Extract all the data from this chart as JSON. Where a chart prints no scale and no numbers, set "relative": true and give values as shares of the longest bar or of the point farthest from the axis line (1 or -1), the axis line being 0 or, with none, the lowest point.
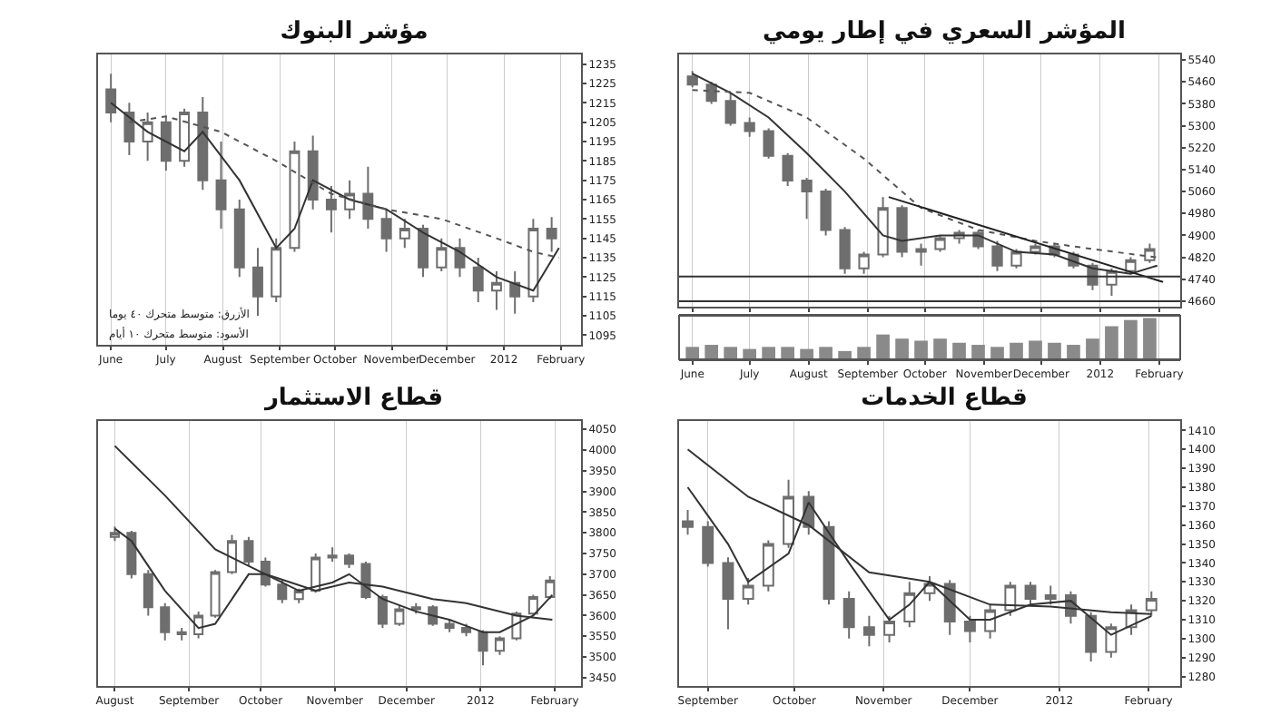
{
  "chart_data": [
    {
      "type": "candlestick",
      "title": "مؤشر البنوك",
      "color": "#6e6e6e",
      "grid": "x",
      "x": [
        "2011-06-01",
        "2011-06-11",
        "2011-06-21",
        "2011-07-01",
        "2011-07-11",
        "2011-07-21",
        "2011-07-31",
        "2011-08-10",
        "2011-08-20",
        "2011-08-30",
        "2011-09-09",
        "2011-09-19",
        "2011-09-29",
        "2011-10-09",
        "2011-10-19",
        "2011-10-29",
        "2011-11-08",
        "2011-11-18",
        "2011-11-28",
        "2011-12-08",
        "2011-12-18",
        "2011-12-28",
        "2012-01-07",
        "2012-01-17",
        "2012-01-27"
      ],
      "ohlc": [
        [
          1222,
          1230,
          1205,
          1210
        ],
        [
          1210,
          1215,
          1188,
          1195
        ],
        [
          1195,
          1210,
          1185,
          1205
        ],
        [
          1205,
          1208,
          1180,
          1185
        ],
        [
          1185,
          1212,
          1182,
          1210
        ],
        [
          1210,
          1218,
          1170,
          1175
        ],
        [
          1175,
          1195,
          1150,
          1160
        ],
        [
          1160,
          1165,
          1125,
          1130
        ],
        [
          1130,
          1140,
          1105,
          1115
        ],
        [
          1115,
          1145,
          1112,
          1140
        ],
        [
          1140,
          1195,
          1138,
          1190
        ],
        [
          1190,
          1198,
          1160,
          1165
        ],
        [
          1165,
          1172,
          1148,
          1160
        ],
        [
          1160,
          1175,
          1155,
          1168
        ],
        [
          1168,
          1182,
          1150,
          1155
        ],
        [
          1155,
          1160,
          1138,
          1145
        ],
        [
          1145,
          1155,
          1140,
          1150
        ],
        [
          1150,
          1152,
          1125,
          1130
        ],
        [
          1130,
          1145,
          1128,
          1140
        ],
        [
          1140,
          1145,
          1125,
          1130
        ],
        [
          1130,
          1135,
          1112,
          1118
        ],
        [
          1118,
          1128,
          1108,
          1122
        ],
        [
          1122,
          1128,
          1106,
          1115
        ],
        [
          1115,
          1155,
          1112,
          1150
        ],
        [
          1150,
          1156,
          1138,
          1145
        ]
      ],
      "series": [
        {
          "type": "line",
          "color": "#333333",
          "line_style": "solid",
          "x": [
            "2011-06-01",
            "2011-06-21",
            "2011-07-11",
            "2011-07-21",
            "2011-08-10",
            "2011-08-30",
            "2011-09-09",
            "2011-09-19",
            "2011-10-09",
            "2011-10-29",
            "2011-11-18",
            "2011-12-08",
            "2011-12-28",
            "2012-01-17",
            "2012-01-31"
          ],
          "values": [
            1215,
            1200,
            1190,
            1200,
            1175,
            1140,
            1150,
            1175,
            1165,
            1160,
            1148,
            1138,
            1125,
            1118,
            1140
          ]
        },
        {
          "type": "line",
          "color": "#555555",
          "line_style": "dotted",
          "x": [
            "2011-06-11",
            "2011-07-01",
            "2011-07-31",
            "2011-08-30",
            "2011-09-29",
            "2011-10-29",
            "2011-11-28",
            "2011-12-28",
            "2012-01-17",
            "2012-01-31"
          ],
          "values": [
            1205,
            1208,
            1200,
            1185,
            1168,
            1160,
            1155,
            1145,
            1138,
            1135
          ]
        }
      ],
      "annotations": [
        "الأزرق: متوسط متحرك ٤٠ يوما",
        "الأسود: متوسط متحرك ١٠ أيام"
      ],
      "xlim": [
        "2011-05-25",
        "2012-02-12"
      ],
      "xticks": [
        {
          "value": "2011-06-01",
          "label": "June"
        },
        {
          "value": "2011-07-01",
          "label": "July"
        },
        {
          "value": "2011-08-01",
          "label": "August"
        },
        {
          "value": "2011-09-01",
          "label": "September"
        },
        {
          "value": "2011-10-01",
          "label": "October"
        },
        {
          "value": "2011-11-01",
          "label": "November"
        },
        {
          "value": "2011-12-01",
          "label": "December"
        },
        {
          "value": "2012-01-01",
          "label": "2012"
        },
        {
          "value": "2012-02-01",
          "label": "February"
        }
      ],
      "ylim": [
        1090,
        1240
      ],
      "yticks": [
        1095,
        1105,
        1115,
        1125,
        1135,
        1145,
        1155,
        1165,
        1175,
        1185,
        1195,
        1205,
        1215,
        1225,
        1235
      ]
    },
    {
      "type": "candlestick",
      "title": "المؤشر السعري في إطار يومي",
      "color": "#6e6e6e",
      "grid": "x",
      "tick_labels": "y",
      "x": [
        "2011-06-01",
        "2011-06-11",
        "2011-06-21",
        "2011-07-01",
        "2011-07-11",
        "2011-07-21",
        "2011-07-31",
        "2011-08-10",
        "2011-08-20",
        "2011-08-30",
        "2011-09-09",
        "2011-09-19",
        "2011-09-29",
        "2011-10-09",
        "2011-10-19",
        "2011-10-29",
        "2011-11-08",
        "2011-11-18",
        "2011-11-28",
        "2011-12-08",
        "2011-12-18",
        "2011-12-28",
        "2012-01-07",
        "2012-01-17",
        "2012-01-27"
      ],
      "ohlc": [
        [
          5480,
          5500,
          5440,
          5450
        ],
        [
          5450,
          5460,
          5380,
          5390
        ],
        [
          5390,
          5420,
          5300,
          5310
        ],
        [
          5310,
          5330,
          5260,
          5280
        ],
        [
          5280,
          5290,
          5180,
          5190
        ],
        [
          5190,
          5200,
          5080,
          5100
        ],
        [
          5100,
          5110,
          4960,
          5060
        ],
        [
          5060,
          5070,
          4900,
          4920
        ],
        [
          4920,
          4930,
          4760,
          4780
        ],
        [
          4780,
          4840,
          4760,
          4830
        ],
        [
          4830,
          5040,
          4820,
          5000
        ],
        [
          5000,
          5010,
          4820,
          4840
        ],
        [
          4840,
          4870,
          4790,
          4850
        ],
        [
          4850,
          4900,
          4840,
          4890
        ],
        [
          4890,
          4920,
          4870,
          4910
        ],
        [
          4910,
          4920,
          4850,
          4860
        ],
        [
          4860,
          4880,
          4770,
          4790
        ],
        [
          4790,
          4850,
          4780,
          4840
        ],
        [
          4840,
          4870,
          4830,
          4860
        ],
        [
          4860,
          4870,
          4820,
          4830
        ],
        [
          4830,
          4840,
          4780,
          4790
        ],
        [
          4790,
          4800,
          4700,
          4720
        ],
        [
          4720,
          4780,
          4680,
          4770
        ],
        [
          4770,
          4820,
          4760,
          4810
        ],
        [
          4810,
          4870,
          4800,
          4850
        ]
      ],
      "series": [
        {
          "type": "line",
          "color": "#333333",
          "line_style": "solid",
          "x": [
            "2011-06-01",
            "2011-06-21",
            "2011-07-11",
            "2011-07-31",
            "2011-08-20",
            "2011-09-09",
            "2011-09-19",
            "2011-10-09",
            "2011-10-29",
            "2011-11-18",
            "2011-12-08",
            "2011-12-28",
            "2012-01-17",
            "2012-01-31"
          ],
          "values": [
            5490,
            5420,
            5330,
            5200,
            5060,
            4900,
            4880,
            4900,
            4900,
            4840,
            4830,
            4780,
            4760,
            4790
          ]
        },
        {
          "type": "line",
          "color": "#555555",
          "line_style": "dotted",
          "x": [
            "2011-06-01",
            "2011-07-01",
            "2011-07-31",
            "2011-08-30",
            "2011-09-29",
            "2011-10-29",
            "2011-11-28",
            "2011-12-28",
            "2012-01-31"
          ],
          "values": [
            5430,
            5420,
            5330,
            5180,
            5000,
            4920,
            4880,
            4850,
            4820
          ]
        },
        {
          "type": "line",
          "color": "#222222",
          "line_style": "solid",
          "x": [
            "2011-09-12",
            "2012-02-03"
          ],
          "values": [
            5040,
            4730
          ]
        }
      ],
      "ref_lines": [
        {
          "axis": "y",
          "value": 4750,
          "color": "#333333"
        },
        {
          "axis": "y",
          "value": 4660,
          "color": "#333333"
        }
      ],
      "xlim": [
        "2011-05-25",
        "2012-02-12"
      ],
      "xticks": [
        "2011-06-01",
        "2011-07-01",
        "2011-08-01",
        "2011-09-01",
        "2011-10-01",
        "2011-11-01",
        "2011-12-01",
        "2012-01-01",
        "2012-02-01"
      ],
      "ylim": [
        4640,
        5560
      ],
      "yticks": [
        4660,
        4740,
        4820,
        4900,
        4980,
        5060,
        5140,
        5220,
        5300,
        5380,
        5460,
        5540
      ]
    },
    {
      "type": "bar",
      "relative": true,
      "color": "#8a8a8a",
      "grid": "x",
      "tick_labels": "x",
      "x": [
        "2011-06-01",
        "2011-06-11",
        "2011-06-21",
        "2011-07-01",
        "2011-07-11",
        "2011-07-21",
        "2011-07-31",
        "2011-08-10",
        "2011-08-20",
        "2011-08-30",
        "2011-09-09",
        "2011-09-19",
        "2011-09-29",
        "2011-10-09",
        "2011-10-19",
        "2011-10-29",
        "2011-11-08",
        "2011-11-18",
        "2011-11-28",
        "2011-12-08",
        "2011-12-18",
        "2011-12-28",
        "2012-01-07",
        "2012-01-17",
        "2012-01-27"
      ],
      "values": [
        0.3,
        0.35,
        0.3,
        0.25,
        0.3,
        0.3,
        0.25,
        0.3,
        0.2,
        0.3,
        0.6,
        0.5,
        0.45,
        0.5,
        0.4,
        0.35,
        0.3,
        0.4,
        0.45,
        0.4,
        0.35,
        0.5,
        0.8,
        0.95,
        1
      ],
      "xlim": [
        "2011-05-25",
        "2012-02-12"
      ],
      "xticks": [
        {
          "value": "2011-06-01",
          "label": "June"
        },
        {
          "value": "2011-07-01",
          "label": "July"
        },
        {
          "value": "2011-08-01",
          "label": "August"
        },
        {
          "value": "2011-09-01",
          "label": "September"
        },
        {
          "value": "2011-10-01",
          "label": "October"
        },
        {
          "value": "2011-11-01",
          "label": "November"
        },
        {
          "value": "2011-12-01",
          "label": "December"
        },
        {
          "value": "2012-01-01",
          "label": "2012"
        },
        {
          "value": "2012-02-01",
          "label": "February"
        }
      ]
    },
    {
      "type": "candlestick",
      "title": "قطاع الاستثمار",
      "color": "#6e6e6e",
      "grid": "x",
      "x": [
        "2011-08-01",
        "2011-08-08",
        "2011-08-15",
        "2011-08-22",
        "2011-08-29",
        "2011-09-05",
        "2011-09-12",
        "2011-09-19",
        "2011-09-26",
        "2011-10-03",
        "2011-10-10",
        "2011-10-17",
        "2011-10-24",
        "2011-10-31",
        "2011-11-07",
        "2011-11-14",
        "2011-11-21",
        "2011-11-28",
        "2011-12-05",
        "2011-12-12",
        "2011-12-19",
        "2011-12-26",
        "2012-01-02",
        "2012-01-09",
        "2012-01-16",
        "2012-01-23",
        "2012-01-30"
      ],
      "ohlc": [
        [
          3790,
          3815,
          3780,
          3800
        ],
        [
          3800,
          3805,
          3690,
          3700
        ],
        [
          3700,
          3710,
          3600,
          3620
        ],
        [
          3620,
          3630,
          3540,
          3560
        ],
        [
          3560,
          3570,
          3540,
          3555
        ],
        [
          3555,
          3610,
          3545,
          3600
        ],
        [
          3600,
          3710,
          3595,
          3705
        ],
        [
          3705,
          3795,
          3700,
          3780
        ],
        [
          3780,
          3790,
          3720,
          3730
        ],
        [
          3730,
          3740,
          3670,
          3675
        ],
        [
          3675,
          3685,
          3630,
          3640
        ],
        [
          3640,
          3665,
          3630,
          3660
        ],
        [
          3660,
          3750,
          3655,
          3740
        ],
        [
          3740,
          3765,
          3730,
          3745
        ],
        [
          3745,
          3750,
          3715,
          3725
        ],
        [
          3725,
          3730,
          3640,
          3645
        ],
        [
          3645,
          3650,
          3570,
          3580
        ],
        [
          3580,
          3625,
          3575,
          3615
        ],
        [
          3615,
          3630,
          3605,
          3620
        ],
        [
          3620,
          3625,
          3575,
          3580
        ],
        [
          3580,
          3590,
          3560,
          3570
        ],
        [
          3570,
          3580,
          3550,
          3560
        ],
        [
          3560,
          3565,
          3480,
          3515
        ],
        [
          3515,
          3550,
          3505,
          3545
        ],
        [
          3545,
          3610,
          3540,
          3605
        ],
        [
          3605,
          3650,
          3600,
          3645
        ],
        [
          3645,
          3695,
          3640,
          3685
        ]
      ],
      "series": [
        {
          "type": "line",
          "color": "#333333",
          "line_style": "solid",
          "x": [
            "2011-08-01",
            "2011-08-08",
            "2011-08-22",
            "2011-09-05",
            "2011-09-12",
            "2011-09-26",
            "2011-10-03",
            "2011-10-17",
            "2011-10-31",
            "2011-11-07",
            "2011-11-21",
            "2011-12-05",
            "2011-12-19",
            "2012-01-02",
            "2012-01-09",
            "2012-01-23",
            "2012-01-31"
          ],
          "values": [
            3810,
            3780,
            3660,
            3570,
            3580,
            3700,
            3700,
            3660,
            3680,
            3700,
            3640,
            3610,
            3590,
            3560,
            3560,
            3600,
            3650
          ]
        },
        {
          "type": "line",
          "color": "#333333",
          "line_style": "solid",
          "x": [
            "2011-08-01",
            "2011-08-22",
            "2011-09-12",
            "2011-10-03",
            "2011-10-24",
            "2011-11-07",
            "2011-11-21",
            "2011-12-12",
            "2011-12-26",
            "2012-01-16",
            "2012-01-31"
          ],
          "values": [
            4010,
            3890,
            3760,
            3700,
            3660,
            3680,
            3670,
            3640,
            3630,
            3600,
            3590
          ]
        }
      ],
      "xlim": [
        "2011-07-25",
        "2012-02-12"
      ],
      "xticks": [
        {
          "value": "2011-08-01",
          "label": "August"
        },
        {
          "value": "2011-09-01",
          "label": "September"
        },
        {
          "value": "2011-10-01",
          "label": "October"
        },
        {
          "value": "2011-11-01",
          "label": "November"
        },
        {
          "value": "2011-12-01",
          "label": "December"
        },
        {
          "value": "2012-01-01",
          "label": "2012"
        },
        {
          "value": "2012-02-01",
          "label": "February"
        }
      ],
      "ylim": [
        3430,
        4070
      ],
      "yticks": [
        3450,
        3500,
        3550,
        3600,
        3650,
        3700,
        3750,
        3800,
        3850,
        3900,
        3950,
        4000,
        4050
      ]
    },
    {
      "type": "candlestick",
      "title": "قطاع الخدمات",
      "color": "#6e6e6e",
      "grid": "x",
      "x": [
        "2011-08-25",
        "2011-09-01",
        "2011-09-08",
        "2011-09-15",
        "2011-09-22",
        "2011-09-29",
        "2011-10-06",
        "2011-10-13",
        "2011-10-20",
        "2011-10-27",
        "2011-11-03",
        "2011-11-10",
        "2011-11-17",
        "2011-11-24",
        "2011-12-01",
        "2011-12-08",
        "2011-12-15",
        "2011-12-22",
        "2011-12-29",
        "2012-01-05",
        "2012-01-12",
        "2012-01-19",
        "2012-01-26",
        "2012-02-02"
      ],
      "ohlc": [
        [
          1362,
          1368,
          1355,
          1359
        ],
        [
          1359,
          1362,
          1338,
          1340
        ],
        [
          1340,
          1343,
          1305,
          1321
        ],
        [
          1321,
          1332,
          1318,
          1328
        ],
        [
          1328,
          1352,
          1325,
          1350
        ],
        [
          1350,
          1384,
          1348,
          1375
        ],
        [
          1375,
          1378,
          1355,
          1359
        ],
        [
          1359,
          1362,
          1318,
          1321
        ],
        [
          1321,
          1325,
          1300,
          1306
        ],
        [
          1306,
          1312,
          1296,
          1302
        ],
        [
          1302,
          1312,
          1298,
          1309
        ],
        [
          1309,
          1330,
          1306,
          1324
        ],
        [
          1324,
          1333,
          1320,
          1329
        ],
        [
          1329,
          1331,
          1302,
          1309
        ],
        [
          1309,
          1312,
          1298,
          1304
        ],
        [
          1304,
          1318,
          1300,
          1315
        ],
        [
          1315,
          1330,
          1312,
          1328
        ],
        [
          1328,
          1330,
          1318,
          1321
        ],
        [
          1321,
          1328,
          1318,
          1323
        ],
        [
          1323,
          1325,
          1308,
          1312
        ],
        [
          1312,
          1314,
          1288,
          1293
        ],
        [
          1293,
          1308,
          1290,
          1306
        ],
        [
          1306,
          1318,
          1302,
          1315
        ],
        [
          1315,
          1325,
          1312,
          1321
        ]
      ],
      "series": [
        {
          "type": "line",
          "color": "#333333",
          "line_style": "solid",
          "x": [
            "2011-08-25",
            "2011-09-08",
            "2011-09-15",
            "2011-09-29",
            "2011-10-06",
            "2011-10-20",
            "2011-11-03",
            "2011-11-10",
            "2011-11-17",
            "2011-12-01",
            "2011-12-08",
            "2011-12-22",
            "2012-01-05",
            "2012-01-19",
            "2012-02-02"
          ],
          "values": [
            1380,
            1350,
            1330,
            1345,
            1372,
            1340,
            1310,
            1318,
            1330,
            1310,
            1310,
            1318,
            1320,
            1302,
            1312
          ]
        },
        {
          "type": "line",
          "color": "#333333",
          "line_style": "solid",
          "x": [
            "2011-08-25",
            "2011-09-15",
            "2011-10-06",
            "2011-10-27",
            "2011-11-17",
            "2011-12-08",
            "2011-12-29",
            "2012-01-19",
            "2012-02-02"
          ],
          "values": [
            1400,
            1375,
            1360,
            1335,
            1330,
            1318,
            1317,
            1314,
            1313
          ]
        }
      ],
      "xlim": [
        "2011-08-22",
        "2012-02-12"
      ],
      "xticks": [
        {
          "value": "2011-09-01",
          "label": "September"
        },
        {
          "value": "2011-10-01",
          "label": "October"
        },
        {
          "value": "2011-11-01",
          "label": "November"
        },
        {
          "value": "2011-12-01",
          "label": "December"
        },
        {
          "value": "2012-01-01",
          "label": "2012"
        },
        {
          "value": "2012-02-01",
          "label": "February"
        }
      ],
      "ylim": [
        1275,
        1415
      ],
      "yticks": [
        1280,
        1290,
        1300,
        1310,
        1320,
        1330,
        1340,
        1350,
        1360,
        1370,
        1380,
        1390,
        1400,
        1410
      ]
    }
  ]
}
